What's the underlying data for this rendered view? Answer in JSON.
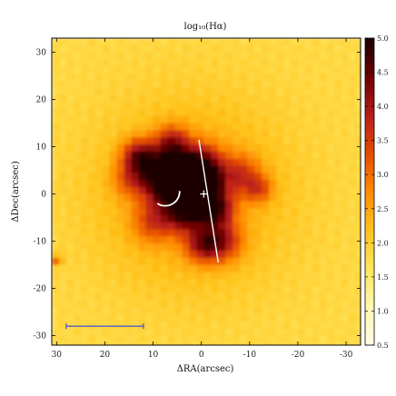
{
  "chart_data": {
    "type": "heatmap",
    "title": "log₁₀(Hα)",
    "xlabel": "ΔRA(arcsec)",
    "ylabel": "ΔDec(arcsec)",
    "xlim": [
      31,
      -33
    ],
    "ylim": [
      -32,
      33
    ],
    "x_ticks": [
      30,
      20,
      10,
      0,
      -10,
      -20,
      -30
    ],
    "x_tick_labels": [
      "30",
      "20",
      "10",
      "0",
      "-10",
      "-20",
      "-30"
    ],
    "y_ticks": [
      30,
      20,
      10,
      0,
      -10,
      -20,
      -30
    ],
    "y_tick_labels": [
      "30",
      "20",
      "10",
      "0",
      "-10",
      "-20",
      "-30"
    ],
    "colorbar": {
      "min": 0.5,
      "max": 5.0,
      "ticks": [
        0.5,
        1.0,
        1.5,
        2.0,
        2.5,
        3.0,
        3.5,
        4.0,
        4.5,
        5.0
      ],
      "tick_labels": [
        "0.5",
        "1.0",
        "1.5",
        "2.0",
        "2.5",
        "3.0",
        "3.5",
        "4.0",
        "4.5",
        "5.0"
      ],
      "colormap": [
        "#fffde6",
        "#fff6b0",
        "#ffe55a",
        "#ffc21a",
        "#ff8c00",
        "#e44a00",
        "#b71c1c",
        "#6e0000",
        "#1a0000"
      ]
    },
    "background_level": 1.8,
    "emission_knots": [
      {
        "x": 8,
        "y": 4,
        "sigma": 3.5,
        "amplitude": 2.3
      },
      {
        "x": 4,
        "y": 2,
        "sigma": 4.0,
        "amplitude": 2.5
      },
      {
        "x": 13,
        "y": 8,
        "sigma": 2.5,
        "amplitude": 2.0
      },
      {
        "x": 6,
        "y": 11,
        "sigma": 2.5,
        "amplitude": 1.6
      },
      {
        "x": 0,
        "y": 6,
        "sigma": 3.0,
        "amplitude": 2.2
      },
      {
        "x": -1,
        "y": 2,
        "sigma": 2.0,
        "amplitude": 2.6
      },
      {
        "x": 3,
        "y": -4,
        "sigma": 3.0,
        "amplitude": 1.9
      },
      {
        "x": -3,
        "y": -3,
        "sigma": 2.5,
        "amplitude": 2.2
      },
      {
        "x": -4,
        "y": -10,
        "sigma": 3.0,
        "amplitude": 1.8
      },
      {
        "x": 0,
        "y": -11,
        "sigma": 2.5,
        "amplitude": 1.4
      },
      {
        "x": -8,
        "y": 4,
        "sigma": 3.0,
        "amplitude": 1.3
      },
      {
        "x": -12,
        "y": 1,
        "sigma": 2.0,
        "amplitude": 1.1
      },
      {
        "x": 10,
        "y": -6,
        "sigma": 3.0,
        "amplitude": 1.1
      },
      {
        "x": 15,
        "y": 3,
        "sigma": 2.5,
        "amplitude": 0.9
      },
      {
        "x": 30,
        "y": -14,
        "sigma": 0.8,
        "amplitude": 1.3
      }
    ],
    "diffuse_halo": {
      "x": 2,
      "y": 0,
      "sigma": 14,
      "amplitude": 0.8
    },
    "overlays": {
      "slit_line": {
        "x1": 0.5,
        "y1": 11.5,
        "x2": -3.5,
        "y2": -14.5,
        "color": "#ffffff"
      },
      "arc": {
        "center_x": 7.5,
        "center_y": 0.5,
        "radius": 3.0,
        "start_deg": 180,
        "end_deg": 60,
        "color": "#ffffff"
      },
      "center_marker": {
        "x": -0.5,
        "y": 0.0,
        "color": "#ffffff"
      },
      "scale_bar": {
        "x1": 28,
        "x2": 12,
        "y": -28,
        "color": "#6a6fb0"
      }
    },
    "grid": false
  }
}
